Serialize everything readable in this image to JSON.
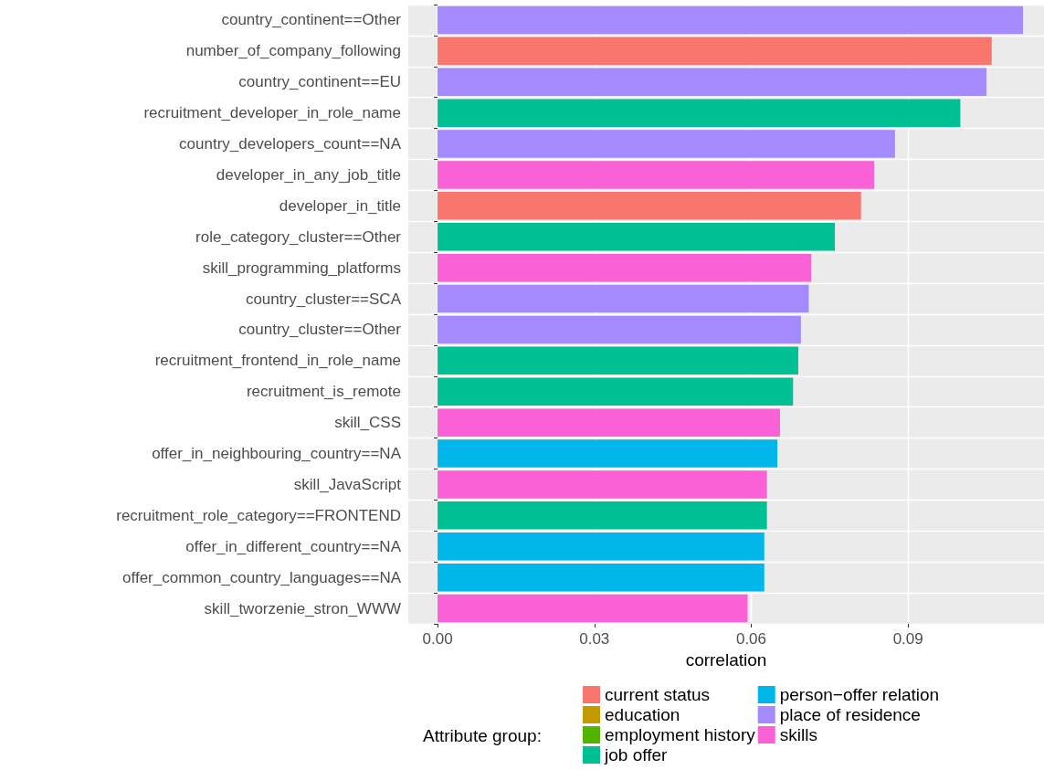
{
  "chart_data": {
    "type": "bar",
    "orientation": "horizontal",
    "xlabel": "correlation",
    "legend_title": "Attribute group:",
    "legend": "bottom",
    "grid": true,
    "categories": [
      "country_continent==Other",
      "number_of_company_following",
      "country_continent==EU",
      "recruitment_developer_in_role_name",
      "country_developers_count==NA",
      "developer_in_any_job_title",
      "developer_in_title",
      "role_category_cluster==Other",
      "skill_programming_platforms",
      "country_cluster==SCA",
      "country_cluster==Other",
      "recruitment_frontend_in_role_name",
      "recruitment_is_remote",
      "skill_CSS",
      "offer_in_neighbouring_country==NA",
      "skill_JavaScript",
      "recruitment_role_category==FRONTEND",
      "offer_in_different_country==NA",
      "offer_common_country_languages==NA",
      "skill_tworzenie_stron_WWW"
    ],
    "xlim": [
      -0.0056,
      0.116
    ],
    "xticks": [
      {
        "value": 0,
        "label": "0.00"
      },
      {
        "value": 0.03,
        "label": "0.03"
      },
      {
        "value": 0.06,
        "label": "0.06"
      },
      {
        "value": 0.09,
        "label": "0.09"
      }
    ],
    "series": [
      {
        "name": "current status",
        "color": "#f8766d",
        "values": [
          null,
          0.106,
          null,
          null,
          null,
          null,
          0.081,
          null,
          null,
          null,
          null,
          null,
          null,
          null,
          null,
          null,
          null,
          null,
          null,
          null
        ]
      },
      {
        "name": "education",
        "color": "#c49a00",
        "values": [
          null,
          null,
          null,
          null,
          null,
          null,
          null,
          null,
          null,
          null,
          null,
          null,
          null,
          null,
          null,
          null,
          null,
          null,
          null,
          null
        ]
      },
      {
        "name": "employment history",
        "color": "#53b400",
        "values": [
          null,
          null,
          null,
          null,
          null,
          null,
          null,
          null,
          null,
          null,
          null,
          null,
          null,
          null,
          null,
          null,
          null,
          null,
          null,
          null
        ]
      },
      {
        "name": "job offer",
        "color": "#00c094",
        "values": [
          null,
          null,
          null,
          0.1,
          null,
          null,
          null,
          0.076,
          null,
          null,
          null,
          0.069,
          0.068,
          null,
          null,
          null,
          0.063,
          null,
          null,
          null
        ]
      },
      {
        "name": "person−offer relation",
        "color": "#00b6eb",
        "values": [
          null,
          null,
          null,
          null,
          null,
          null,
          null,
          null,
          null,
          null,
          null,
          null,
          null,
          null,
          0.065,
          null,
          null,
          0.0625,
          0.0625,
          null
        ]
      },
      {
        "name": "place of residence",
        "color": "#a58aff",
        "values": [
          0.112,
          null,
          0.105,
          null,
          0.0875,
          null,
          null,
          null,
          null,
          0.071,
          0.0695,
          null,
          null,
          null,
          null,
          null,
          null,
          null,
          null,
          null
        ]
      },
      {
        "name": "skills",
        "color": "#fb61d7",
        "values": [
          null,
          null,
          null,
          null,
          null,
          0.0835,
          null,
          null,
          0.0715,
          null,
          null,
          null,
          null,
          0.0655,
          null,
          0.063,
          null,
          null,
          null,
          0.0593
        ]
      }
    ]
  }
}
